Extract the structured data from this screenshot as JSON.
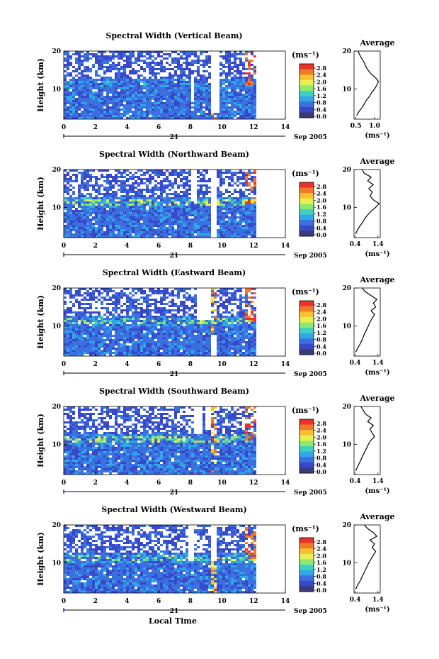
{
  "figure": {
    "date_label": "Sep 2005",
    "day_label": "21",
    "xlabel": "Local Time",
    "ylabel": "Height (km)",
    "unit_label": "(ms⁻¹)",
    "avg_title": "Average"
  },
  "colorbar": {
    "ticks": [
      "2.8",
      "2.4",
      "2.0",
      "1.6",
      "1.2",
      "0.8",
      "0.4",
      "0.0"
    ],
    "colors": [
      "#e8322a",
      "#f07a28",
      "#f8c030",
      "#e8f050",
      "#8ee870",
      "#40d0c0",
      "#30a8e8",
      "#3a70e0",
      "#3848c8",
      "#3a3a78"
    ]
  },
  "chart_data": [
    {
      "type": "heatmap",
      "title": "Spectral Width (Vertical Beam)",
      "xlabel": "Local Time",
      "ylabel": "Height (km)",
      "x_ticks": [
        "0",
        "2",
        "4",
        "6",
        "8",
        "10",
        "12",
        "14"
      ],
      "xlim": [
        0,
        14
      ],
      "ylim": [
        2,
        20
      ],
      "y_ticks": [
        "20",
        "10"
      ],
      "data_xlim": [
        0,
        12
      ],
      "gaps": [
        [
          7.9,
          8.1,
          7,
          13
        ],
        [
          9.3,
          9.7,
          4,
          19
        ]
      ],
      "avg_profile": {
        "xlim": [
          0.45,
          1.15
        ],
        "x_ticks": [
          "0.5",
          "1.0"
        ],
        "x_tick_values": [
          0.5,
          1.0
        ],
        "y_ticks": [
          "20",
          "10"
        ],
        "heights": [
          3,
          4,
          5,
          6,
          7,
          8,
          9,
          10,
          11,
          12,
          13,
          14,
          15,
          16,
          17,
          18,
          19,
          20
        ],
        "values": [
          0.52,
          0.58,
          0.66,
          0.72,
          0.78,
          0.86,
          0.92,
          1.0,
          1.06,
          1.1,
          1.02,
          0.9,
          0.82,
          0.76,
          0.72,
          0.66,
          0.6,
          0.56
        ]
      }
    },
    {
      "type": "heatmap",
      "title": "Spectral Width (Northward Beam)",
      "xlabel": "Local Time",
      "ylabel": "Height (km)",
      "x_ticks": [
        "0",
        "2",
        "4",
        "6",
        "8",
        "10",
        "12",
        "14"
      ],
      "xlim": [
        0,
        14
      ],
      "ylim": [
        2,
        20
      ],
      "y_ticks": [
        "20",
        "10"
      ],
      "data_xlim": [
        0,
        12
      ],
      "gaps": [
        [
          7.9,
          8.3,
          12,
          20
        ],
        [
          9.3,
          9.6,
          2,
          20
        ]
      ],
      "avg_profile": {
        "xlim": [
          0.35,
          1.5
        ],
        "x_ticks": [
          "0.4",
          "1.4"
        ],
        "x_tick_values": [
          0.4,
          1.4
        ],
        "y_ticks": [
          "20",
          "10"
        ],
        "heights": [
          3,
          4,
          5,
          6,
          7,
          8,
          9,
          10,
          11,
          12,
          13,
          14,
          15,
          16,
          17,
          18,
          19,
          20
        ],
        "values": [
          0.42,
          0.5,
          0.6,
          0.72,
          0.82,
          0.95,
          1.1,
          1.3,
          1.45,
          1.2,
          1.05,
          1.15,
          1.0,
          1.2,
          0.95,
          1.1,
          0.8,
          0.7
        ]
      }
    },
    {
      "type": "heatmap",
      "title": "Spectral Width (Eastward Beam)",
      "xlabel": "Local Time",
      "ylabel": "Height (km)",
      "x_ticks": [
        "0",
        "2",
        "4",
        "6",
        "8",
        "10",
        "12",
        "14"
      ],
      "xlim": [
        0,
        14
      ],
      "ylim": [
        2,
        20
      ],
      "y_ticks": [
        "20",
        "10"
      ],
      "data_xlim": [
        0,
        12
      ],
      "gaps": [
        [
          8.4,
          9.2,
          12,
          20
        ],
        [
          9.2,
          9.6,
          2,
          8
        ]
      ],
      "avg_profile": {
        "xlim": [
          0.35,
          1.5
        ],
        "x_ticks": [
          "0.4",
          "1.4"
        ],
        "x_tick_values": [
          0.4,
          1.4
        ],
        "y_ticks": [
          "20",
          "10"
        ],
        "heights": [
          3,
          4,
          5,
          6,
          7,
          8,
          9,
          10,
          11,
          12,
          13,
          14,
          15,
          16,
          17,
          18,
          19,
          20
        ],
        "values": [
          0.42,
          0.5,
          0.6,
          0.68,
          0.75,
          0.82,
          0.9,
          0.98,
          1.05,
          1.15,
          1.25,
          1.1,
          1.3,
          1.2,
          1.35,
          1.1,
          0.85,
          0.7
        ]
      }
    },
    {
      "type": "heatmap",
      "title": "Spectral Width (Southward Beam)",
      "xlabel": "Local Time",
      "ylabel": "Height (km)",
      "x_ticks": [
        "0",
        "2",
        "4",
        "6",
        "8",
        "10",
        "12",
        "14"
      ],
      "xlim": [
        0,
        14
      ],
      "ylim": [
        2,
        20
      ],
      "y_ticks": [
        "20",
        "10"
      ],
      "data_xlim": [
        0,
        12
      ],
      "gaps": [
        [
          8.1,
          8.7,
          13,
          20
        ],
        [
          8.9,
          9.2,
          14,
          20
        ]
      ],
      "avg_profile": {
        "xlim": [
          0.35,
          1.5
        ],
        "x_ticks": [
          "0.4",
          "1.4"
        ],
        "x_tick_values": [
          0.4,
          1.4
        ],
        "y_ticks": [
          "20",
          "10"
        ],
        "heights": [
          3,
          4,
          5,
          6,
          7,
          8,
          9,
          10,
          11,
          12,
          13,
          14,
          15,
          16,
          17,
          18,
          19,
          20
        ],
        "values": [
          0.42,
          0.5,
          0.58,
          0.66,
          0.74,
          0.82,
          0.9,
          0.98,
          1.08,
          1.25,
          1.15,
          1.05,
          1.2,
          0.95,
          1.1,
          0.85,
          0.75,
          0.65
        ]
      }
    },
    {
      "type": "heatmap",
      "title": "Spectral Width (Westward Beam)",
      "xlabel": "Local Time",
      "ylabel": "Height (km)",
      "x_ticks": [
        "0",
        "2",
        "4",
        "6",
        "8",
        "10",
        "12",
        "14"
      ],
      "xlim": [
        0,
        14
      ],
      "ylim": [
        2,
        20
      ],
      "y_ticks": [
        "20",
        "10"
      ],
      "data_xlim": [
        0,
        12
      ],
      "gaps": [
        [
          7.8,
          8.2,
          11,
          20
        ],
        [
          9.2,
          9.5,
          11,
          20
        ]
      ],
      "avg_profile": {
        "xlim": [
          0.35,
          1.5
        ],
        "x_ticks": [
          "0.4",
          "1.4"
        ],
        "x_tick_values": [
          0.4,
          1.4
        ],
        "y_ticks": [
          "20",
          "10"
        ],
        "heights": [
          3,
          4,
          5,
          6,
          7,
          8,
          9,
          10,
          11,
          12,
          13,
          14,
          15,
          16,
          17,
          18,
          19,
          20
        ],
        "values": [
          0.42,
          0.5,
          0.6,
          0.68,
          0.76,
          0.84,
          0.92,
          1.0,
          1.1,
          1.2,
          1.3,
          1.15,
          1.25,
          1.05,
          1.35,
          1.2,
          0.95,
          0.8
        ]
      }
    }
  ]
}
